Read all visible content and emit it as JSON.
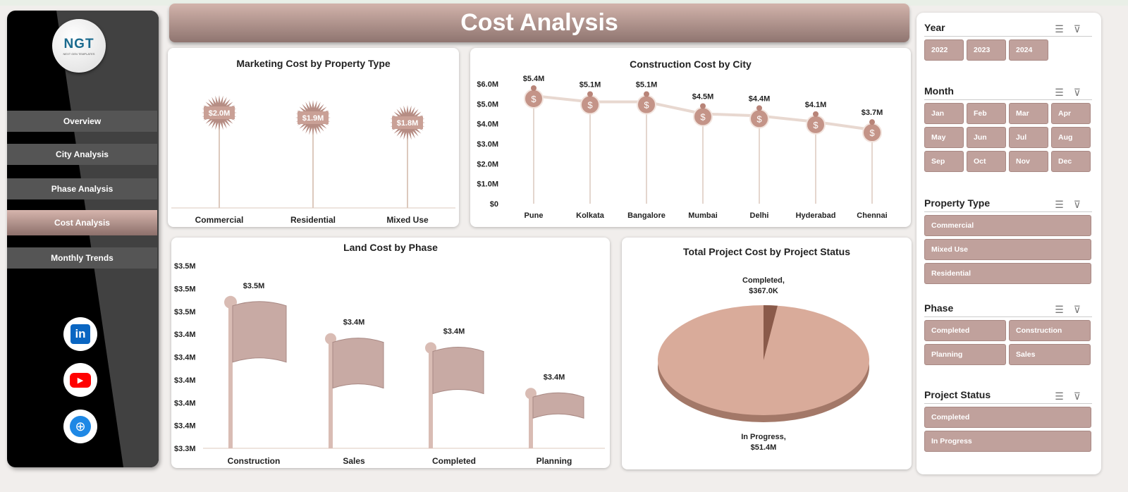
{
  "header": {
    "title": "Cost Analysis"
  },
  "logo": {
    "text": "NGT",
    "subtitle": "NEXT GEN TEMPLATES"
  },
  "sidebar": {
    "items": [
      {
        "label": "Overview"
      },
      {
        "label": "City Analysis"
      },
      {
        "label": "Phase Analysis"
      },
      {
        "label": "Cost Analysis",
        "active": true
      },
      {
        "label": "Monthly Trends"
      }
    ],
    "social": [
      {
        "icon": "linkedin-icon",
        "color": "#0a66c2"
      },
      {
        "icon": "youtube-icon",
        "color": "#ff0000"
      },
      {
        "icon": "globe-icon",
        "color": "#1e88e5"
      }
    ]
  },
  "colors": {
    "accent": "#c0a19c",
    "header": "#a88883",
    "chart_line": "#dcc9bd",
    "sidebar": "#414141"
  },
  "chart_data": [
    {
      "type": "lollipop",
      "title": "Marketing Cost by Property Type",
      "categories": [
        "Commercial",
        "Residential",
        "Mixed Use"
      ],
      "values": [
        2.0,
        1.9,
        1.8
      ],
      "labels": [
        "$2.0M",
        "$1.9M",
        "$1.8M"
      ],
      "unit": "$M"
    },
    {
      "type": "line",
      "title": "Construction Cost by City",
      "categories": [
        "Pune",
        "Kolkata",
        "Bangalore",
        "Mumbai",
        "Delhi",
        "Hyderabad",
        "Chennai"
      ],
      "values": [
        5.4,
        5.1,
        5.1,
        4.5,
        4.4,
        4.1,
        3.7
      ],
      "labels": [
        "$5.4M",
        "$5.1M",
        "$5.1M",
        "$4.5M",
        "$4.4M",
        "$4.1M",
        "$3.7M"
      ],
      "yticks": [
        "$0",
        "$1.0M",
        "$2.0M",
        "$3.0M",
        "$4.0M",
        "$5.0M",
        "$6.0M"
      ],
      "ylim": [
        0,
        6
      ]
    },
    {
      "type": "bar",
      "title": "Land Cost by Phase",
      "categories": [
        "Construction",
        "Sales",
        "Completed",
        "Planning"
      ],
      "values": [
        3.46,
        3.42,
        3.41,
        3.36
      ],
      "labels": [
        "$3.5M",
        "$3.4M",
        "$3.4M",
        "$3.4M"
      ],
      "yticks": [
        "$3.3M",
        "$3.4M",
        "$3.4M",
        "$3.4M",
        "$3.4M",
        "$3.4M",
        "$3.5M",
        "$3.5M",
        "$3.5M"
      ],
      "ylim": [
        3.3,
        3.5
      ]
    },
    {
      "type": "pie",
      "title": "Total Project Cost by Project Status",
      "slices": [
        {
          "name": "Completed",
          "value": 0.367,
          "label": "Completed,",
          "value_label": "$367.0K",
          "color": "#8a5a4a"
        },
        {
          "name": "In Progress",
          "value": 51.4,
          "label": "In Progress,",
          "value_label": "$51.4M",
          "color": "#d9ab9a"
        }
      ],
      "unit": "$M"
    }
  ],
  "filters": [
    {
      "title": "Year",
      "items": [
        "2022",
        "2023",
        "2024"
      ]
    },
    {
      "title": "Month",
      "items": [
        "Jan",
        "Feb",
        "Mar",
        "Apr",
        "May",
        "Jun",
        "Jul",
        "Aug",
        "Sep",
        "Oct",
        "Nov",
        "Dec"
      ]
    },
    {
      "title": "Property Type",
      "items": [
        "Commercial",
        "Mixed Use",
        "Residential"
      ]
    },
    {
      "title": "Phase",
      "items": [
        "Completed",
        "Construction",
        "Planning",
        "Sales"
      ]
    },
    {
      "title": "Project Status",
      "items": [
        "Completed",
        "In Progress"
      ]
    }
  ]
}
